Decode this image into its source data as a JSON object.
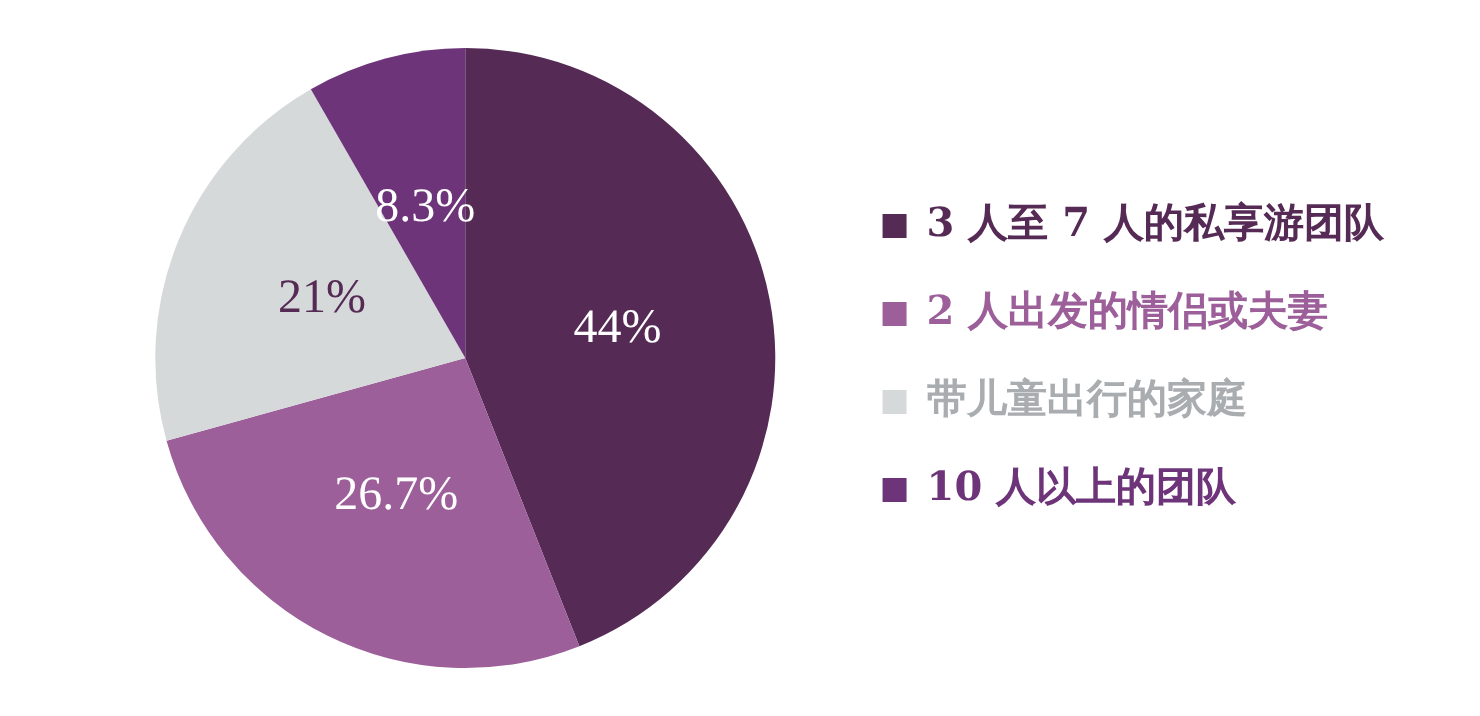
{
  "chart_data": {
    "type": "pie",
    "categories": [
      "3 人至 7 人的私享游团队",
      "2 人出发的情侣或夫妻",
      "带儿童出行的家庭",
      "10 人以上的团队"
    ],
    "values": [
      44,
      26.7,
      21,
      8.3
    ],
    "colors": [
      "#552a55",
      "#9c5f9a",
      "#d6d9da",
      "#6e347a"
    ],
    "value_labels": [
      "44%",
      "26.7%",
      "21%",
      "8.3%"
    ],
    "legend": "right"
  }
}
